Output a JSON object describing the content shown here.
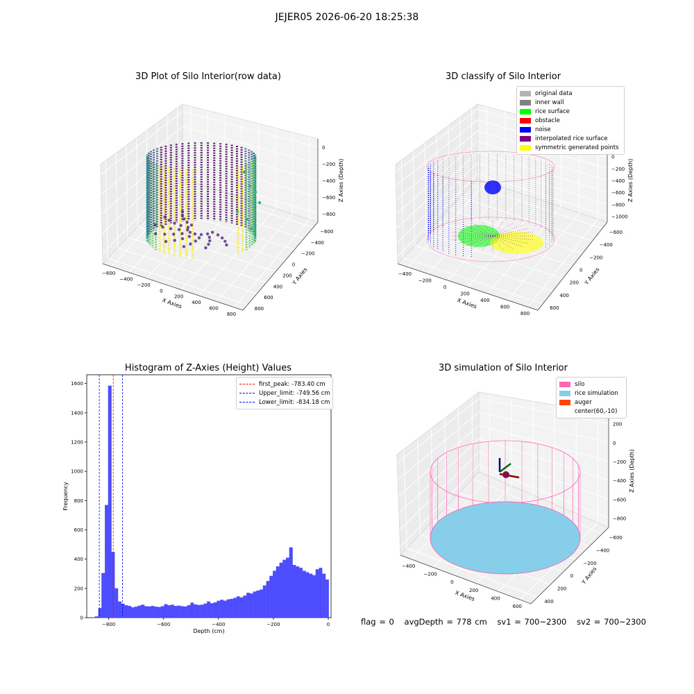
{
  "suptitle": "JEJER05 2026-06-20 18:25:38",
  "status": {
    "flag": "flag = 0",
    "avg_depth": "avgDepth = 778 cm",
    "sv1": "sv1 = 700~2300",
    "sv2": "sv2 = 700~2300"
  },
  "chart_data": [
    {
      "type": "scatter",
      "title": "3D Plot of Silo Interior(row data)",
      "xlabel": "X Axies",
      "ylabel": "Y Axies",
      "zlabel": "Z Axies (Depth)",
      "x_ticks": [
        "−600",
        "−400",
        "−200",
        "0",
        "200",
        "400",
        "600",
        "800"
      ],
      "y_ticks": [
        "−600",
        "−400",
        "−200",
        "0",
        "200",
        "400",
        "600",
        "800"
      ],
      "z_ticks": [
        "0",
        "−200",
        "−400",
        "−600",
        "−800"
      ],
      "xlim": [
        -600,
        800
      ],
      "ylim": [
        -600,
        800
      ],
      "zlim": [
        -900,
        0
      ],
      "colormap": "viridis",
      "grid": true
    },
    {
      "type": "scatter",
      "title": "3D classify of Silo Interior",
      "xlabel": "X Axies",
      "ylabel": "Y Axies",
      "zlabel": "Z Axies (Depth)",
      "x_ticks": [
        "−400",
        "−200",
        "0",
        "200",
        "400",
        "600",
        "800"
      ],
      "y_ticks": [
        "−600",
        "−400",
        "−200",
        "0",
        "200",
        "400",
        "600"
      ],
      "z_ticks": [
        "200",
        "0",
        "−200",
        "−400",
        "−600",
        "−800",
        "−1000"
      ],
      "xlim": [
        -500,
        800
      ],
      "ylim": [
        -600,
        600
      ],
      "zlim": [
        -1000,
        200
      ],
      "legend": [
        {
          "label": "original data",
          "color": "#b3b3b3"
        },
        {
          "label": "inner wall",
          "color": "#808080"
        },
        {
          "label": "rice surface",
          "color": "#00ff00"
        },
        {
          "label": "obstacle",
          "color": "#ff0000"
        },
        {
          "label": "noise",
          "color": "#0000ff"
        },
        {
          "label": "interpolated rice surface",
          "color": "#800080"
        },
        {
          "label": "symmetric generated points",
          "color": "#ffff00"
        }
      ],
      "legend_position": "top-right",
      "grid": true
    },
    {
      "type": "bar",
      "title": "Histogram of Z-Axies (Height) Values",
      "xlabel": "Depth (cm)",
      "ylabel": "Frequency",
      "bar_color": "#4d4dff",
      "xlim": [
        -880,
        10
      ],
      "ylim": [
        0,
        1660
      ],
      "x_ticks": [
        -800,
        -600,
        -400,
        -200,
        0
      ],
      "y_ticks": [
        0,
        200,
        400,
        600,
        800,
        1000,
        1200,
        1400,
        1600
      ],
      "bin_edges": [
        -850,
        -838,
        -826,
        -814,
        -802,
        -790,
        -778,
        -766,
        -754,
        -742,
        -730,
        -718,
        -706,
        -694,
        -682,
        -670,
        -658,
        -646,
        -634,
        -622,
        -610,
        -598,
        -586,
        -574,
        -562,
        -550,
        -538,
        -526,
        -514,
        -502,
        -490,
        -478,
        -466,
        -454,
        -442,
        -430,
        -418,
        -406,
        -394,
        -382,
        -370,
        -358,
        -346,
        -334,
        -322,
        -310,
        -298,
        -286,
        -274,
        -262,
        -250,
        -238,
        -226,
        -214,
        -202,
        -190,
        -178,
        -166,
        -154,
        -142,
        -130,
        -118,
        -106,
        -94,
        -82,
        -70,
        -58,
        -46,
        -34,
        -22,
        -10,
        2
      ],
      "values": [
        8,
        65,
        305,
        770,
        1585,
        450,
        200,
        110,
        95,
        85,
        80,
        70,
        75,
        82,
        88,
        78,
        76,
        80,
        75,
        72,
        78,
        92,
        85,
        88,
        80,
        82,
        78,
        76,
        85,
        102,
        90,
        86,
        88,
        96,
        110,
        98,
        104,
        115,
        122,
        116,
        125,
        128,
        135,
        145,
        138,
        150,
        170,
        165,
        178,
        185,
        192,
        220,
        250,
        285,
        320,
        350,
        375,
        395,
        410,
        480,
        360,
        350,
        340,
        320,
        310,
        300,
        290,
        330,
        340,
        300,
        260
      ],
      "annotation_lines": [
        {
          "label": "first_peak: -783.40 cm",
          "value": -783.4,
          "color": "#ff0000"
        },
        {
          "label": "Upper_limit: -749.56 cm",
          "value": -749.56,
          "color": "#0000ff"
        },
        {
          "label": "Lower_limit: -834.18 cm",
          "value": -834.18,
          "color": "#0000ff"
        }
      ],
      "legend_position": "top-right"
    },
    {
      "type": "scatter",
      "title": "3D simulation of Silo Interior",
      "xlabel": "X Axies",
      "ylabel": "Y Axies",
      "zlabel": "Z Axies (Depth)",
      "x_ticks": [
        "−400",
        "−200",
        "0",
        "200",
        "400",
        "600"
      ],
      "y_ticks": [
        "−600",
        "−400",
        "−200",
        "0",
        "200",
        "400"
      ],
      "z_ticks": [
        "200",
        "0",
        "−200",
        "−400",
        "−600",
        "−800"
      ],
      "xlim": [
        -500,
        600
      ],
      "ylim": [
        -600,
        400
      ],
      "zlim": [
        -900,
        300
      ],
      "legend": [
        {
          "label": "silo",
          "color": "#ff69b4"
        },
        {
          "label": "rice simulation",
          "color": "#87ceeb"
        },
        {
          "label": "auger",
          "color": "#ff4500"
        },
        {
          "label": "center(60,-10)",
          "color": "#ffffff"
        }
      ],
      "legend_position": "top-right",
      "grid": true
    }
  ]
}
